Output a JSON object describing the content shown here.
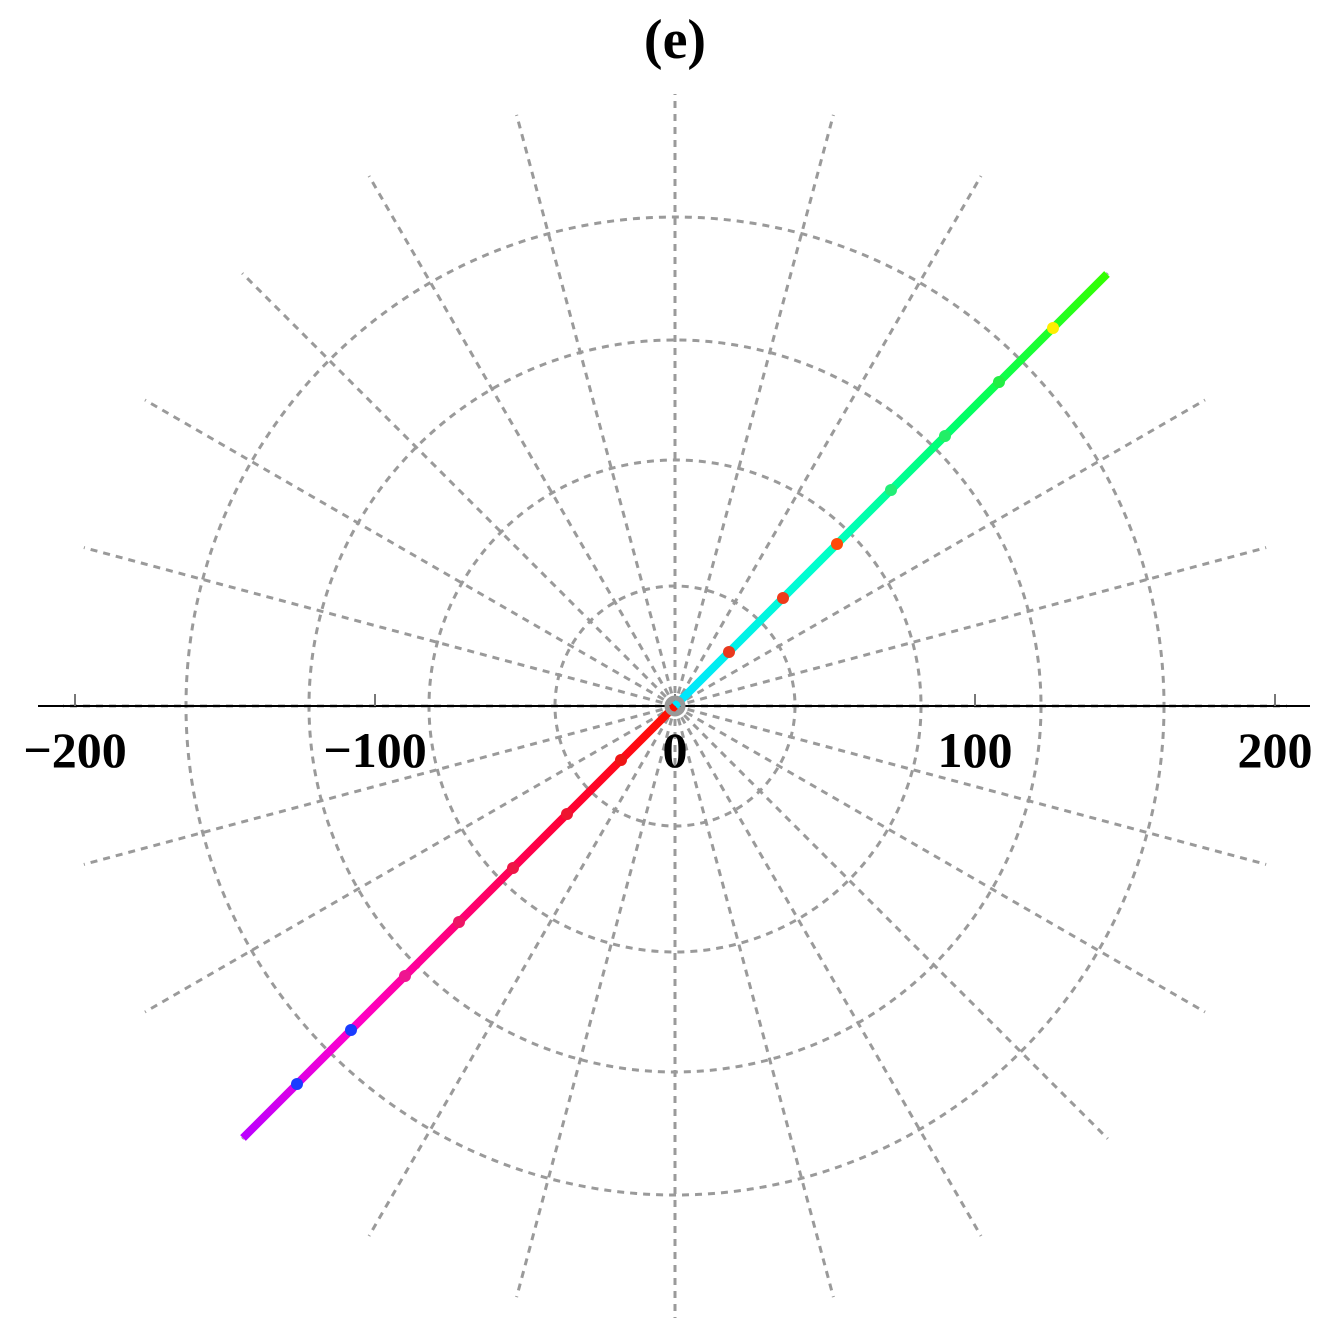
{
  "chart_data": {
    "type": "scatter",
    "title": "(e)",
    "xlabel": "",
    "ylabel": "",
    "xlim": [
      -203,
      212
    ],
    "x_ticks": [
      -200,
      -100,
      0,
      100,
      200
    ],
    "x_tick_labels": [
      "−200",
      "−100",
      "0",
      "100",
      "200"
    ],
    "polar_grid": {
      "radii": [
        40,
        82,
        122,
        163
      ],
      "spoke_count": 24,
      "spoke_length": 204,
      "grid": true,
      "grid_color": "#9a9a9a"
    },
    "series": [
      {
        "line": true,
        "gradient": true,
        "x": [
          0,
          48,
          96,
          144
        ],
        "y": [
          0,
          48,
          96,
          144
        ],
        "colors": [
          "#00e5ff",
          "#00ffcc",
          "#00ff66",
          "#33ff00"
        ],
        "points": [
          {
            "x": 18,
            "y": 18,
            "color": "#e8391e"
          },
          {
            "x": 36,
            "y": 36,
            "color": "#ee3b1a"
          },
          {
            "x": 54,
            "y": 54,
            "color": "#ff4a08"
          },
          {
            "x": 72,
            "y": 72,
            "color": "#22ee77"
          },
          {
            "x": 90,
            "y": 90,
            "color": "#22ee66"
          },
          {
            "x": 108,
            "y": 108,
            "color": "#22ee44"
          },
          {
            "x": 126,
            "y": 126,
            "color": "#ffee00"
          }
        ]
      },
      {
        "line": true,
        "gradient": true,
        "x": [
          0,
          -36,
          -72,
          -108,
          -144
        ],
        "y": [
          0,
          -36,
          -72,
          -108,
          -144
        ],
        "colors": [
          "#ff1100",
          "#ff0033",
          "#ff0077",
          "#ff00cc",
          "#bb00ff"
        ],
        "points": [
          {
            "x": -18,
            "y": -18,
            "color": "#ee1515"
          },
          {
            "x": -36,
            "y": -36,
            "color": "#ee1530"
          },
          {
            "x": -54,
            "y": -54,
            "color": "#ee1545"
          },
          {
            "x": -72,
            "y": -72,
            "color": "#ee1565"
          },
          {
            "x": -90,
            "y": -90,
            "color": "#ee1590"
          },
          {
            "x": -108,
            "y": -108,
            "color": "#1a3cff"
          },
          {
            "x": -126,
            "y": -126,
            "color": "#1a3cff"
          }
        ]
      }
    ],
    "origin_marker": {
      "x": 0,
      "y": 0,
      "color": "#999999"
    }
  }
}
